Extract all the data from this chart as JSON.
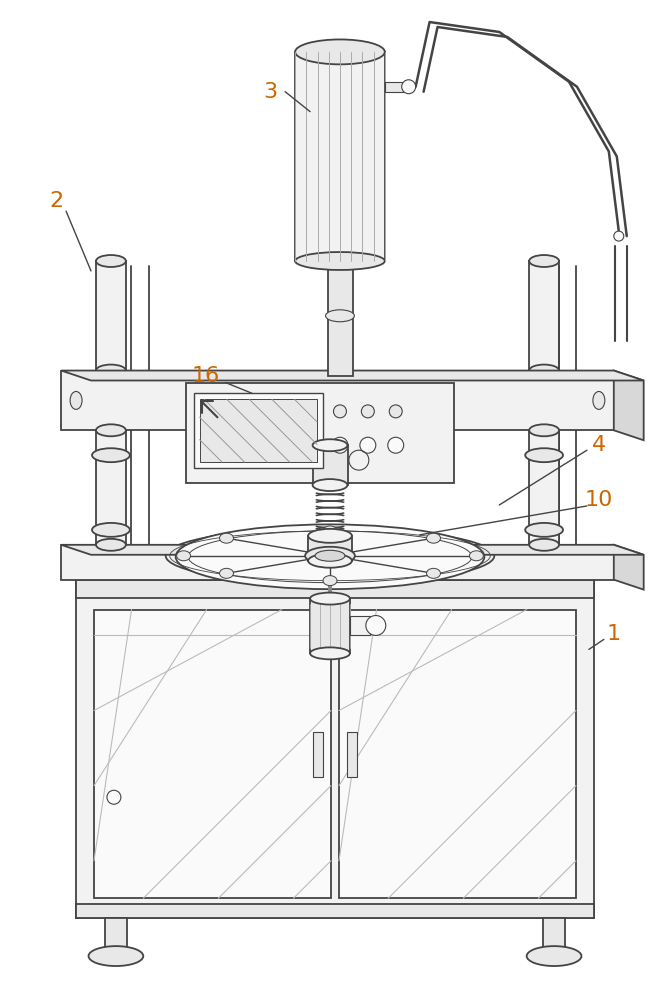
{
  "fig_width": 6.61,
  "fig_height": 10.0,
  "bg_color": "#ffffff",
  "lc": "#444444",
  "lc2": "#666666",
  "label_color": "#cc6600",
  "lw": 1.3,
  "lw_thin": 0.7,
  "lw_thick": 2.0,
  "fc_light": "#f2f2f2",
  "fc_mid": "#e8e8e8",
  "fc_dark": "#d8d8d8",
  "fc_white": "#fafafa"
}
